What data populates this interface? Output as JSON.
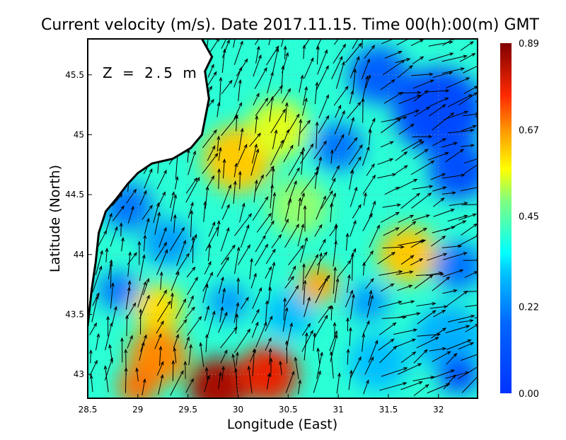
{
  "chart_data": {
    "type": "heatmap",
    "title": "Current velocity (m/s). Date 2017.11.15. Time 00(h):00(m) GMT",
    "xlabel": "Longitude (East)",
    "ylabel": "Latitude (North)",
    "annotation": "Z = 2.5 m",
    "xlim": [
      28.5,
      32.39
    ],
    "ylim": [
      42.8,
      45.8
    ],
    "xticks": [
      28.5,
      29,
      29.5,
      30,
      30.5,
      31,
      31.5,
      32
    ],
    "xtick_labels": [
      "28.5",
      "29",
      "29.5",
      "30",
      "30.5",
      "31",
      "31.5",
      "32"
    ],
    "yticks": [
      43,
      43.5,
      44,
      44.5,
      45,
      45.5
    ],
    "ytick_labels": [
      "43",
      "43.5",
      "44",
      "44.5",
      "45",
      "45.5"
    ],
    "grid": true,
    "colorbar": {
      "min": 0.0,
      "max": 0.89,
      "ticks": [
        0.89,
        0.67,
        0.45,
        0.22,
        0.0
      ],
      "tick_labels": [
        "0.89",
        "0.67",
        "0.45",
        "0.22",
        "0.00"
      ],
      "colormap": "jet"
    },
    "background_speed": 0.4,
    "speed_features": [
      {
        "lon": 32.0,
        "lat": 45.2,
        "r": 0.45,
        "v": 0.08
      },
      {
        "lon": 31.4,
        "lat": 45.5,
        "r": 0.3,
        "v": 0.15
      },
      {
        "lon": 32.2,
        "lat": 44.7,
        "r": 0.3,
        "v": 0.1
      },
      {
        "lon": 31.0,
        "lat": 44.9,
        "r": 0.25,
        "v": 0.2
      },
      {
        "lon": 30.0,
        "lat": 44.8,
        "r": 0.35,
        "v": 0.62
      },
      {
        "lon": 30.4,
        "lat": 45.05,
        "r": 0.3,
        "v": 0.55
      },
      {
        "lon": 30.6,
        "lat": 44.4,
        "r": 0.3,
        "v": 0.5
      },
      {
        "lon": 31.7,
        "lat": 44.0,
        "r": 0.3,
        "v": 0.62
      },
      {
        "lon": 32.2,
        "lat": 43.9,
        "r": 0.25,
        "v": 0.2
      },
      {
        "lon": 32.1,
        "lat": 43.3,
        "r": 0.35,
        "v": 0.28
      },
      {
        "lon": 32.2,
        "lat": 43.0,
        "r": 0.2,
        "v": 0.08
      },
      {
        "lon": 28.9,
        "lat": 44.4,
        "r": 0.25,
        "v": 0.2
      },
      {
        "lon": 29.3,
        "lat": 44.1,
        "r": 0.25,
        "v": 0.25
      },
      {
        "lon": 28.8,
        "lat": 43.7,
        "r": 0.2,
        "v": 0.2
      },
      {
        "lon": 29.2,
        "lat": 43.55,
        "r": 0.25,
        "v": 0.6
      },
      {
        "lon": 29.9,
        "lat": 43.6,
        "r": 0.2,
        "v": 0.25
      },
      {
        "lon": 30.5,
        "lat": 43.5,
        "r": 0.25,
        "v": 0.3
      },
      {
        "lon": 30.8,
        "lat": 43.75,
        "r": 0.2,
        "v": 0.65
      },
      {
        "lon": 29.2,
        "lat": 43.15,
        "r": 0.3,
        "v": 0.68
      },
      {
        "lon": 29.8,
        "lat": 42.9,
        "r": 0.3,
        "v": 0.85
      },
      {
        "lon": 30.3,
        "lat": 43.0,
        "r": 0.3,
        "v": 0.78
      },
      {
        "lon": 29.0,
        "lat": 42.9,
        "r": 0.2,
        "v": 0.7
      },
      {
        "lon": 31.4,
        "lat": 43.1,
        "r": 0.3,
        "v": 0.3
      },
      {
        "lon": 31.3,
        "lat": 43.6,
        "r": 0.2,
        "v": 0.25
      }
    ],
    "coastline": [
      [
        29.64,
        45.8
      ],
      [
        29.74,
        45.65
      ],
      [
        29.67,
        45.53
      ],
      [
        29.71,
        45.3
      ],
      [
        29.64,
        45.0
      ],
      [
        29.53,
        44.89
      ],
      [
        29.35,
        44.8
      ],
      [
        29.14,
        44.76
      ],
      [
        29.0,
        44.68
      ],
      [
        28.9,
        44.59
      ],
      [
        28.79,
        44.47
      ],
      [
        28.68,
        44.36
      ],
      [
        28.61,
        44.18
      ],
      [
        28.58,
        43.94
      ],
      [
        28.54,
        43.71
      ],
      [
        28.5,
        43.41
      ]
    ],
    "mean_current_direction_deg": 200
  }
}
